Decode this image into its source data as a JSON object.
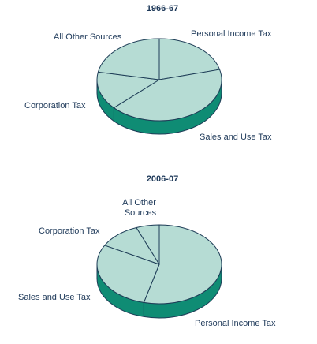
{
  "colors": {
    "slice_top": "#b6dcd4",
    "side": "#0f8c74",
    "outline": "#1e3d57",
    "text": "#1f3a5a"
  },
  "chart_data": [
    {
      "type": "pie",
      "title": "1966-67",
      "categories": [
        "Personal Income Tax",
        "Sales and Use Tax",
        "Corporation Tax",
        "All Other Sources"
      ],
      "values": [
        21,
        42,
        15,
        22
      ],
      "unit": "percent (estimated)",
      "three_d": true
    },
    {
      "type": "pie",
      "title": "2006-07",
      "categories": [
        "Personal Income Tax",
        "Sales and Use Tax",
        "Corporation Tax",
        "All Other Sources"
      ],
      "values": [
        54,
        29,
        11,
        6
      ],
      "unit": "percent (estimated)",
      "three_d": true
    }
  ]
}
